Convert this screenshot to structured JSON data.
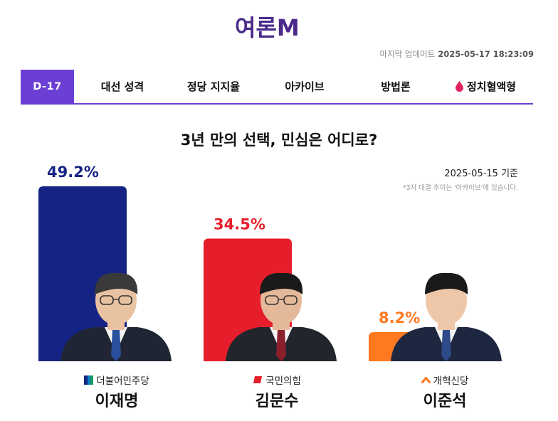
{
  "header": {
    "logo_text": "여론M",
    "updated_label": "마지막 업데이트",
    "updated_time": "2025-05-17 18:23:09"
  },
  "nav": {
    "dday": "D-17",
    "tabs": [
      {
        "label": "대선 성격"
      },
      {
        "label": "정당 지지율"
      },
      {
        "label": "아카이브"
      },
      {
        "label": "방법론"
      },
      {
        "label": "정치혈액형"
      }
    ]
  },
  "main": {
    "headline": "3년 만의 선택, 민심은 어디로?",
    "basis": "2025-05-15 기준",
    "note": "*3자 대결 추이는 '아카이브'에 있습니다."
  },
  "colors": {
    "accent": "#6b3fd4",
    "democratic": "#152484",
    "ppp": "#e61e2b",
    "reform": "#ff7920"
  },
  "chart_data": {
    "type": "bar",
    "categories": [
      "이재명",
      "김문수",
      "이준석"
    ],
    "values": [
      49.2,
      34.5,
      8.2
    ],
    "value_labels": [
      "49.2%",
      "34.5%",
      "8.2%"
    ],
    "parties": [
      "더불어민주당",
      "국민의힘",
      "개혁신당"
    ],
    "colors": [
      "#152484",
      "#e61e2b",
      "#ff7920"
    ],
    "ylim": [
      0,
      49.2
    ]
  }
}
